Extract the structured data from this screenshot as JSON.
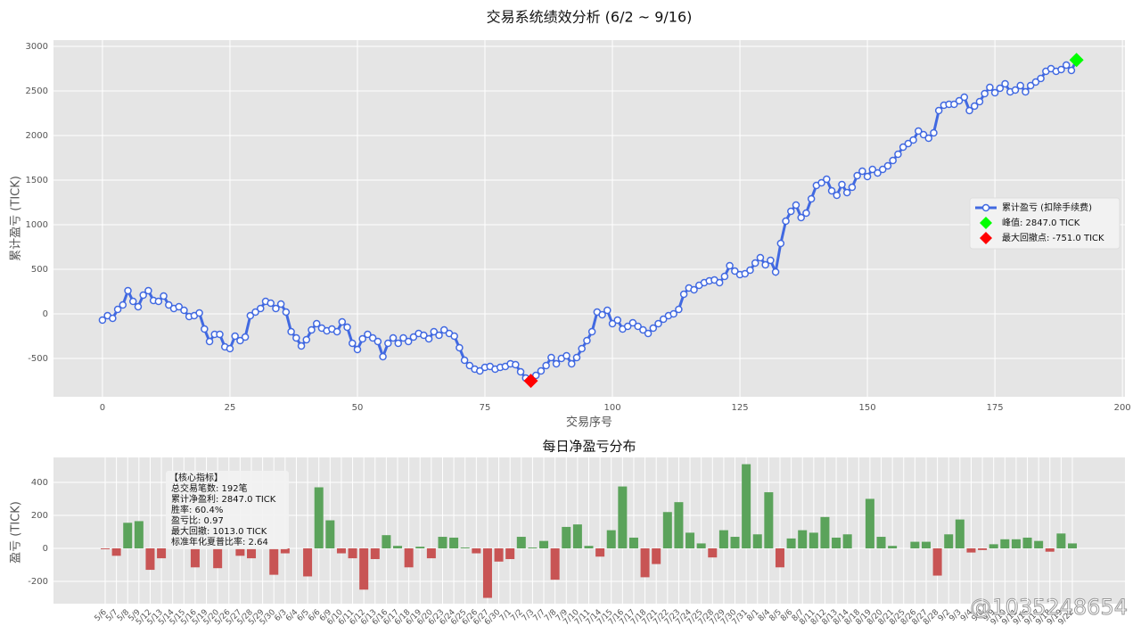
{
  "chart_data": [
    {
      "type": "line",
      "title": "交易系统绩效分析 (6/2 ~ 9/16)",
      "x_label": "交易序号",
      "y_label": "累计盈亏 (TICK)",
      "x": [
        0,
        1,
        2,
        3,
        4,
        5,
        6,
        7,
        8,
        9,
        10,
        11,
        12,
        13,
        14,
        15,
        16,
        17,
        18,
        19,
        20,
        21,
        22,
        23,
        24,
        25,
        26,
        27,
        28,
        29,
        30,
        31,
        32,
        33,
        34,
        35,
        36,
        37,
        38,
        39,
        40,
        41,
        42,
        43,
        44,
        45,
        46,
        47,
        48,
        49,
        50,
        51,
        52,
        53,
        54,
        55,
        56,
        57,
        58,
        59,
        60,
        61,
        62,
        63,
        64,
        65,
        66,
        67,
        68,
        69,
        70,
        71,
        72,
        73,
        74,
        75,
        76,
        77,
        78,
        79,
        80,
        81,
        82,
        83,
        84,
        85,
        86,
        87,
        88,
        89,
        90,
        91,
        92,
        93,
        94,
        95,
        96,
        97,
        98,
        99,
        100,
        101,
        102,
        103,
        104,
        105,
        106,
        107,
        108,
        109,
        110,
        111,
        112,
        113,
        114,
        115,
        116,
        117,
        118,
        119,
        120,
        121,
        122,
        123,
        124,
        125,
        126,
        127,
        128,
        129,
        130,
        131,
        132,
        133,
        134,
        135,
        136,
        137,
        138,
        139,
        140,
        141,
        142,
        143,
        144,
        145,
        146,
        147,
        148,
        149,
        150,
        151,
        152,
        153,
        154,
        155,
        156,
        157,
        158,
        159,
        160,
        161,
        162,
        163,
        164,
        165,
        166,
        167,
        168,
        169,
        170,
        171,
        172,
        173,
        174,
        175,
        176,
        177,
        178,
        179,
        180,
        181,
        182,
        183,
        184,
        185,
        186,
        187,
        188,
        189,
        190,
        191
      ],
      "series": [
        {
          "name": "累计盈亏 (扣除手续费)",
          "color": "#4169e1",
          "values": [
            -70,
            -20,
            -50,
            50,
            100,
            260,
            140,
            80,
            210,
            260,
            150,
            140,
            200,
            100,
            60,
            80,
            40,
            -30,
            -20,
            10,
            -170,
            -310,
            -230,
            -230,
            -370,
            -390,
            -250,
            -300,
            -260,
            -20,
            20,
            60,
            140,
            120,
            60,
            110,
            20,
            -200,
            -270,
            -360,
            -290,
            -180,
            -110,
            -160,
            -190,
            -170,
            -200,
            -90,
            -150,
            -330,
            -400,
            -280,
            -230,
            -270,
            -310,
            -480,
            -330,
            -270,
            -330,
            -270,
            -310,
            -260,
            -220,
            -240,
            -280,
            -200,
            -240,
            -180,
            -220,
            -250,
            -380,
            -520,
            -580,
            -620,
            -640,
            -600,
            -590,
            -620,
            -600,
            -590,
            -560,
            -570,
            -650,
            -720,
            -751,
            -690,
            -640,
            -580,
            -490,
            -560,
            -500,
            -470,
            -560,
            -490,
            -390,
            -300,
            -200,
            20,
            -10,
            40,
            -110,
            -70,
            -170,
            -140,
            -100,
            -140,
            -180,
            -220,
            -160,
            -110,
            -60,
            -20,
            0,
            50,
            220,
            290,
            270,
            320,
            350,
            370,
            380,
            350,
            420,
            540,
            480,
            440,
            450,
            490,
            570,
            630,
            550,
            600,
            470,
            790,
            1040,
            1150,
            1220,
            1080,
            1130,
            1290,
            1440,
            1470,
            1510,
            1380,
            1330,
            1450,
            1360,
            1420,
            1550,
            1600,
            1540,
            1620,
            1580,
            1620,
            1660,
            1720,
            1790,
            1870,
            1910,
            1950,
            2050,
            2010,
            1970,
            2030,
            2280,
            2340,
            2350,
            2350,
            2390,
            2430,
            2280,
            2330,
            2380,
            2470,
            2540,
            2480,
            2530,
            2580,
            2490,
            2510,
            2560,
            2490,
            2560,
            2600,
            2640,
            2720,
            2750,
            2720,
            2740,
            2790,
            2730,
            2847
          ]
        }
      ],
      "markers": [
        {
          "label": "峰值: 2847.0 TICK",
          "x": 191,
          "y": 2847,
          "color": "#00ff00"
        },
        {
          "label": "最大回撤点: -751.0 TICK",
          "x": 84,
          "y": -751,
          "color": "#ff0000"
        }
      ],
      "xlim": [
        -9.6,
        200.5
      ],
      "xticks": [
        0,
        25,
        50,
        75,
        100,
        125,
        150,
        175,
        200
      ],
      "ylim": [
        -930,
        3070
      ],
      "yticks": [
        -500,
        0,
        500,
        1000,
        1500,
        2000,
        2500,
        3000
      ],
      "grid": true,
      "legend": "center right"
    },
    {
      "type": "bar",
      "title": "每日净盈亏分布",
      "y_label": "盈亏 (TICK)",
      "categories": [
        "5/6",
        "5/7",
        "5/8",
        "5/9",
        "5/12",
        "5/13",
        "5/14",
        "5/15",
        "5/16",
        "5/19",
        "5/20",
        "5/26",
        "5/27",
        "5/28",
        "5/29",
        "5/30",
        "6/3",
        "6/4",
        "6/5",
        "6/6",
        "6/9",
        "6/10",
        "6/11",
        "6/12",
        "6/13",
        "6/16",
        "6/17",
        "6/18",
        "6/19",
        "6/20",
        "6/23",
        "6/24",
        "6/25",
        "6/26",
        "6/27",
        "6/30",
        "7/1",
        "7/2",
        "7/3",
        "7/7",
        "7/8",
        "7/9",
        "7/10",
        "7/11",
        "7/14",
        "7/15",
        "7/16",
        "7/17",
        "7/18",
        "7/21",
        "7/22",
        "7/23",
        "7/24",
        "7/25",
        "7/28",
        "7/29",
        "7/30",
        "7/31",
        "8/1",
        "8/4",
        "8/5",
        "8/6",
        "8/7",
        "8/11",
        "8/12",
        "8/13",
        "8/14",
        "8/18",
        "8/19",
        "8/20",
        "8/21",
        "8/25",
        "8/26",
        "8/27",
        "8/28",
        "9/2",
        "9/3",
        "9/4",
        "9/8",
        "9/9",
        "9/10",
        "9/11",
        "9/16",
        "9/17",
        "9/18",
        "9/19",
        "9/22"
      ],
      "values": [
        -5,
        -45,
        155,
        165,
        -130,
        -60,
        0,
        0,
        -115,
        0,
        -120,
        0,
        -45,
        -60,
        0,
        -160,
        -30,
        0,
        -170,
        370,
        170,
        -30,
        -60,
        -250,
        -65,
        80,
        15,
        -115,
        10,
        -60,
        70,
        65,
        5,
        -30,
        -300,
        -80,
        -65,
        70,
        5,
        45,
        -190,
        130,
        145,
        15,
        -50,
        110,
        375,
        65,
        -175,
        -95,
        220,
        280,
        95,
        30,
        -55,
        110,
        70,
        510,
        85,
        340,
        -115,
        60,
        110,
        95,
        190,
        65,
        85,
        0,
        300,
        70,
        15,
        0,
        40,
        40,
        -165,
        85,
        175,
        -25,
        -10,
        25,
        55,
        55,
        65,
        45,
        -20,
        90,
        30
      ],
      "positive_color": "#5ba35b",
      "negative_color": "#c85454",
      "ylim": [
        -335,
        551
      ],
      "yticks": [
        -200,
        0,
        200,
        400
      ],
      "grid": true,
      "text_box": {
        "title": "【核心指标】",
        "lines": [
          "总交易笔数: 192笔",
          "累计净盈利: 2847.0 TICK",
          "胜率: 60.4%",
          "盈亏比: 0.97",
          "最大回撤: 1013.0 TICK",
          "标准年化夏普比率: 2.64"
        ]
      }
    }
  ],
  "watermark": "@1035248654"
}
